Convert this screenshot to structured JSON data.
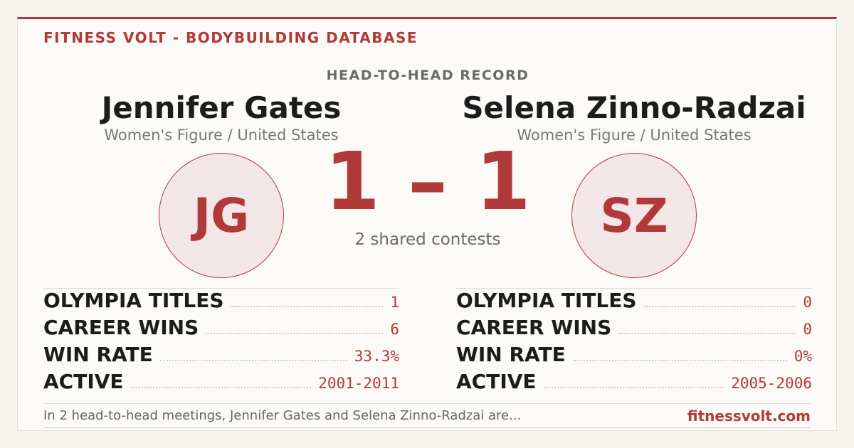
{
  "header": {
    "brand": "FITNESS VOLT - BODYBUILDING DATABASE",
    "title": "HEAD-TO-HEAD RECORD"
  },
  "athletes": [
    {
      "name": "Jennifer Gates",
      "division": "Women's Figure / United States",
      "initials": "JG",
      "stats": [
        {
          "label": "OLYMPIA TITLES",
          "value": "1"
        },
        {
          "label": "CAREER WINS",
          "value": "6"
        },
        {
          "label": "WIN RATE",
          "value": "33.3%"
        },
        {
          "label": "ACTIVE",
          "value": "2001-2011"
        }
      ]
    },
    {
      "name": "Selena Zinno-Radzai",
      "division": "Women's Figure / United States",
      "initials": "SZ",
      "stats": [
        {
          "label": "OLYMPIA TITLES",
          "value": "0"
        },
        {
          "label": "CAREER WINS",
          "value": "0"
        },
        {
          "label": "WIN RATE",
          "value": "0%"
        },
        {
          "label": "ACTIVE",
          "value": "2005-2006"
        }
      ]
    }
  ],
  "score": "1 – 1",
  "shared": "2 shared contests",
  "footer": {
    "note": "In 2 head-to-head meetings, Jennifer Gates and Selena Zinno-Radzai are...",
    "site": "fitnessvolt.com"
  }
}
